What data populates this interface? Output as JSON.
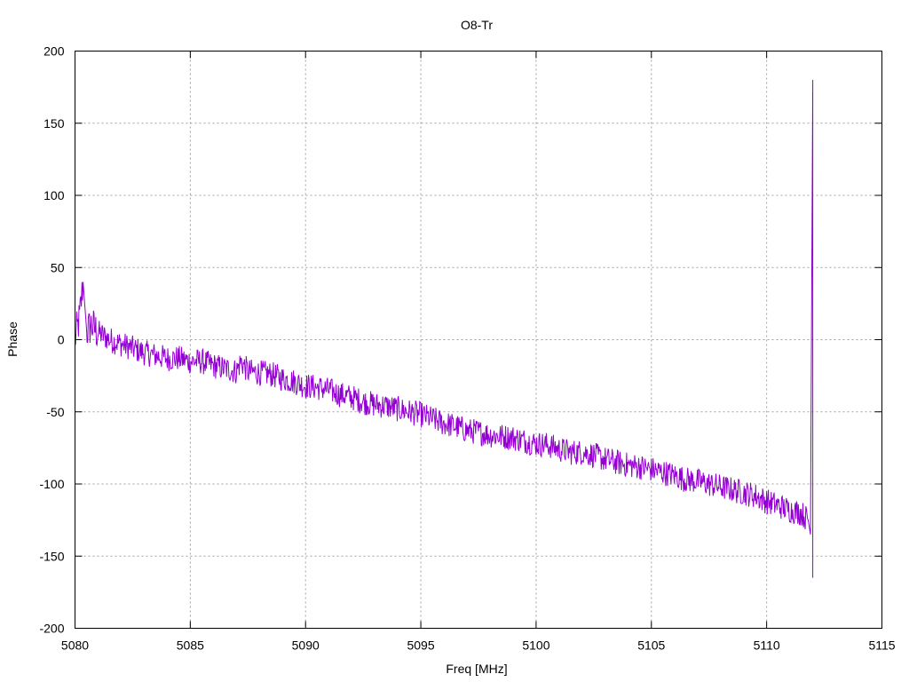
{
  "chart_data": {
    "type": "line",
    "title": "O8-Tr",
    "xlabel": "Freq [MHz]",
    "ylabel": "Phase",
    "xlim": [
      5080,
      5115
    ],
    "ylim": [
      -200,
      200
    ],
    "xticks": [
      5080,
      5085,
      5090,
      5095,
      5100,
      5105,
      5110,
      5115
    ],
    "yticks": [
      -200,
      -150,
      -100,
      -50,
      0,
      50,
      100,
      150,
      200
    ],
    "xtick_labels": [
      "5080",
      "5085",
      "5090",
      "5095",
      "5100",
      "5105",
      "5110",
      "5115"
    ],
    "ytick_labels": [
      "-200",
      "-150",
      "-100",
      "-50",
      "0",
      "50",
      "100",
      "150",
      "200"
    ],
    "grid": true,
    "series_color": "#9400d3",
    "series": [
      {
        "x": [
          5080.0,
          5080.2,
          5080.35,
          5080.5,
          5080.7,
          5081.0,
          5081.5,
          5082.0,
          5082.5,
          5083.0,
          5083.5,
          5084.0,
          5084.5,
          5085.0,
          5085.5,
          5086.0,
          5086.5,
          5087.0,
          5087.2,
          5087.5,
          5088.0,
          5088.5,
          5089.0,
          5089.5,
          5090.0,
          5090.5,
          5091.0,
          5091.5,
          5092.0,
          5092.5,
          5093.0,
          5093.5,
          5094.0,
          5094.5,
          5095.0,
          5095.5,
          5096.0,
          5096.5,
          5097.0,
          5097.5,
          5098.0,
          5098.5,
          5099.0,
          5099.5,
          5100.0,
          5100.5,
          5101.0,
          5101.5,
          5102.0,
          5102.5,
          5103.0,
          5103.5,
          5104.0,
          5104.5,
          5105.0,
          5105.5,
          5106.0,
          5106.5,
          5107.0,
          5107.5,
          5108.0,
          5108.5,
          5109.0,
          5109.5,
          5110.0,
          5110.5,
          5111.0,
          5111.5,
          5111.8,
          5111.9,
          5112.0
        ],
        "y": [
          0,
          15,
          40,
          5,
          10,
          5,
          0,
          -3,
          -6,
          -9,
          -11,
          -13,
          -13,
          -15,
          -15,
          -18,
          -20,
          -22,
          -15,
          -22,
          -23,
          -24,
          -27,
          -29,
          -32,
          -33,
          -35,
          -38,
          -40,
          -43,
          -45,
          -46,
          -48,
          -50,
          -52,
          -55,
          -58,
          -60,
          -63,
          -64,
          -66,
          -67,
          -68,
          -70,
          -72,
          -73,
          -76,
          -78,
          -78,
          -80,
          -83,
          -85,
          -87,
          -88,
          -90,
          -92,
          -94,
          -97,
          -98,
          -100,
          -102,
          -104,
          -106,
          -108,
          -112,
          -115,
          -118,
          -120,
          -125,
          -135,
          180
        ]
      }
    ]
  }
}
